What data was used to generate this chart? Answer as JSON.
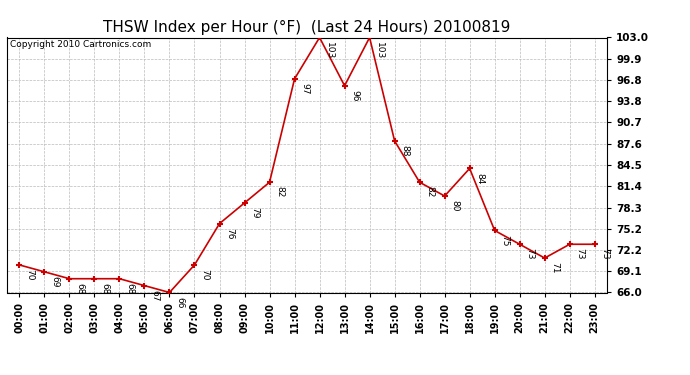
{
  "title": "THSW Index per Hour (°F)  (Last 24 Hours) 20100819",
  "copyright": "Copyright 2010 Cartronics.com",
  "hours": [
    "00:00",
    "01:00",
    "02:00",
    "03:00",
    "04:00",
    "05:00",
    "06:00",
    "07:00",
    "08:00",
    "09:00",
    "10:00",
    "11:00",
    "12:00",
    "13:00",
    "14:00",
    "15:00",
    "16:00",
    "17:00",
    "18:00",
    "19:00",
    "20:00",
    "21:00",
    "22:00",
    "23:00"
  ],
  "values": [
    70,
    69,
    68,
    68,
    68,
    67,
    66,
    70,
    76,
    79,
    82,
    97,
    103,
    96,
    103,
    88,
    82,
    80,
    84,
    75,
    73,
    71,
    73,
    73
  ],
  "line_color": "#cc0000",
  "marker_color": "#cc0000",
  "background_color": "#ffffff",
  "grid_color": "#bbbbbb",
  "ylim": [
    66.0,
    103.0
  ],
  "yticks": [
    66.0,
    69.1,
    72.2,
    75.2,
    78.3,
    81.4,
    84.5,
    87.6,
    90.7,
    93.8,
    96.8,
    99.9,
    103.0
  ],
  "title_fontsize": 11,
  "copyright_fontsize": 6.5,
  "label_fontsize": 6.5,
  "tick_fontsize": 7.5
}
